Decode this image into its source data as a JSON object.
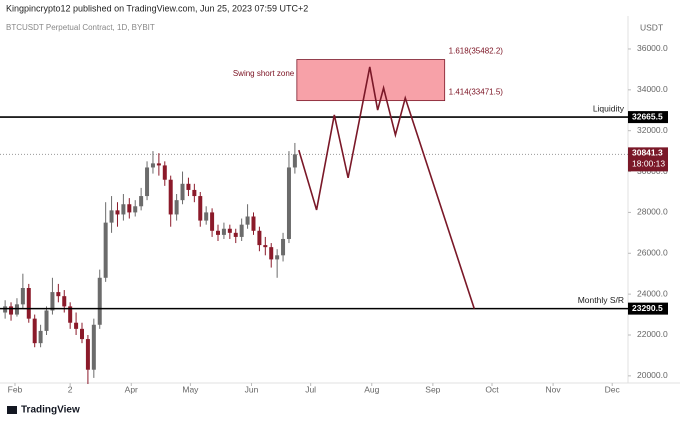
{
  "chart_data": {
    "type": "candlestick",
    "title": "Kingpincrypto12 published on TradingView.com, Jun 25, 2023 07:59 UTC+2",
    "subtitle": "BTCUSDT Perpetual Contract, 1D, BYBIT",
    "y_axis_label": "USDT",
    "footer": "TradingView",
    "up_color": "#6b6b6b",
    "down_color": "#8b1a2a",
    "xlim": [
      -7.6,
      311
    ],
    "ylim": [
      19650,
      37320
    ],
    "xticks": [
      {
        "value": 0,
        "label": "Feb"
      },
      {
        "value": 28,
        "label": "2"
      },
      {
        "value": 59,
        "label": "Apr"
      },
      {
        "value": 89,
        "label": "May"
      },
      {
        "value": 120,
        "label": "Jun"
      },
      {
        "value": 150,
        "label": "Jul"
      },
      {
        "value": 181,
        "label": "Aug"
      },
      {
        "value": 212,
        "label": "Sep"
      },
      {
        "value": 242,
        "label": "Oct"
      },
      {
        "value": 273,
        "label": "Nov"
      },
      {
        "value": 303,
        "label": "Dec"
      }
    ],
    "yticks": [
      {
        "value": 20000,
        "label": "20000.0"
      },
      {
        "value": 22000,
        "label": "22000.0"
      },
      {
        "value": 24000,
        "label": "24000.0"
      },
      {
        "value": 26000,
        "label": "26000.0"
      },
      {
        "value": 28000,
        "label": "28000.0"
      },
      {
        "value": 30000,
        "label": "30000.0"
      },
      {
        "value": 32000,
        "label": "32000.0"
      },
      {
        "value": 34000,
        "label": "34000.0"
      },
      {
        "value": 36000,
        "label": "36000.0"
      }
    ],
    "x": [
      -5,
      -2,
      1,
      4,
      7,
      10,
      13,
      16,
      19,
      22,
      25,
      28,
      31,
      34,
      37,
      40,
      43,
      46,
      49,
      52,
      55,
      58,
      61,
      64,
      67,
      70,
      73,
      76,
      79,
      82,
      85,
      88,
      91,
      94,
      97,
      100,
      103,
      106,
      109,
      112,
      115,
      118,
      121,
      124,
      127,
      130,
      133,
      136,
      139,
      142
    ],
    "open": [
      23100,
      23400,
      23000,
      23500,
      24300,
      22800,
      21600,
      22200,
      23200,
      24100,
      23900,
      23400,
      22600,
      22300,
      21800,
      20300,
      22500,
      24800,
      27500,
      28100,
      27900,
      28400,
      28000,
      28300,
      28800,
      30200,
      30400,
      30300,
      29600,
      27900,
      28600,
      29400,
      29100,
      28800,
      27600,
      28000,
      27100,
      26900,
      27200,
      27000,
      26800,
      27400,
      27800,
      27100,
      26400,
      26300,
      25700,
      25900,
      26700,
      30200
    ],
    "high": [
      23700,
      23600,
      23800,
      25000,
      24500,
      23000,
      22500,
      23400,
      24800,
      24500,
      24200,
      23600,
      23100,
      22600,
      22000,
      22800,
      25200,
      28500,
      28800,
      28500,
      28900,
      28700,
      28600,
      29200,
      30500,
      31000,
      30900,
      30500,
      29800,
      28900,
      30000,
      29700,
      29400,
      29000,
      28300,
      28200,
      27400,
      27500,
      27400,
      27200,
      27700,
      28400,
      28000,
      27300,
      26800,
      26500,
      26200,
      27000,
      31000,
      31400
    ],
    "low": [
      22800,
      22700,
      22900,
      23300,
      22600,
      21400,
      21400,
      22000,
      23000,
      23600,
      23100,
      22300,
      22000,
      21600,
      19600,
      19900,
      22300,
      24600,
      27000,
      27300,
      27600,
      27700,
      27800,
      28100,
      28600,
      29900,
      29800,
      29300,
      27300,
      27600,
      28400,
      28800,
      28500,
      27300,
      27400,
      26800,
      26600,
      26700,
      26700,
      26500,
      26600,
      27200,
      26900,
      26100,
      25900,
      25300,
      24800,
      25600,
      26500,
      29900
    ],
    "close": [
      23400,
      23000,
      23500,
      24300,
      22800,
      21600,
      22200,
      23200,
      24100,
      23900,
      23400,
      22600,
      22300,
      21800,
      20300,
      22500,
      24800,
      27500,
      28100,
      27900,
      28400,
      28000,
      28300,
      28800,
      30200,
      30400,
      30300,
      29600,
      27900,
      28600,
      29400,
      29100,
      28800,
      27600,
      28000,
      27100,
      26900,
      27200,
      27000,
      26800,
      27400,
      27800,
      27100,
      26400,
      26300,
      25700,
      25900,
      26700,
      30200,
      30841.3
    ],
    "levels": [
      {
        "value": 32665.5,
        "label": "Liquidity"
      },
      {
        "value": 23290.5,
        "label": "Monthly S/R"
      }
    ],
    "last_price": {
      "value": 30841.3,
      "countdown": "18:00:13"
    },
    "zone": {
      "label": "Swing short zone",
      "x": [
        143,
        218
      ],
      "y": [
        33471.5,
        35482.2
      ],
      "upper_label": "1.618(35482.2)",
      "lower_label": "1.414(33471.5)",
      "color": "#f7a1a8"
    },
    "projection": {
      "color": "#7a1828",
      "x": [
        144,
        153,
        162,
        169,
        180,
        184,
        187,
        193,
        198,
        233
      ],
      "y": [
        31050,
        28120,
        32770,
        29690,
        35120,
        33010,
        34090,
        31790,
        33600,
        23290
      ]
    }
  }
}
